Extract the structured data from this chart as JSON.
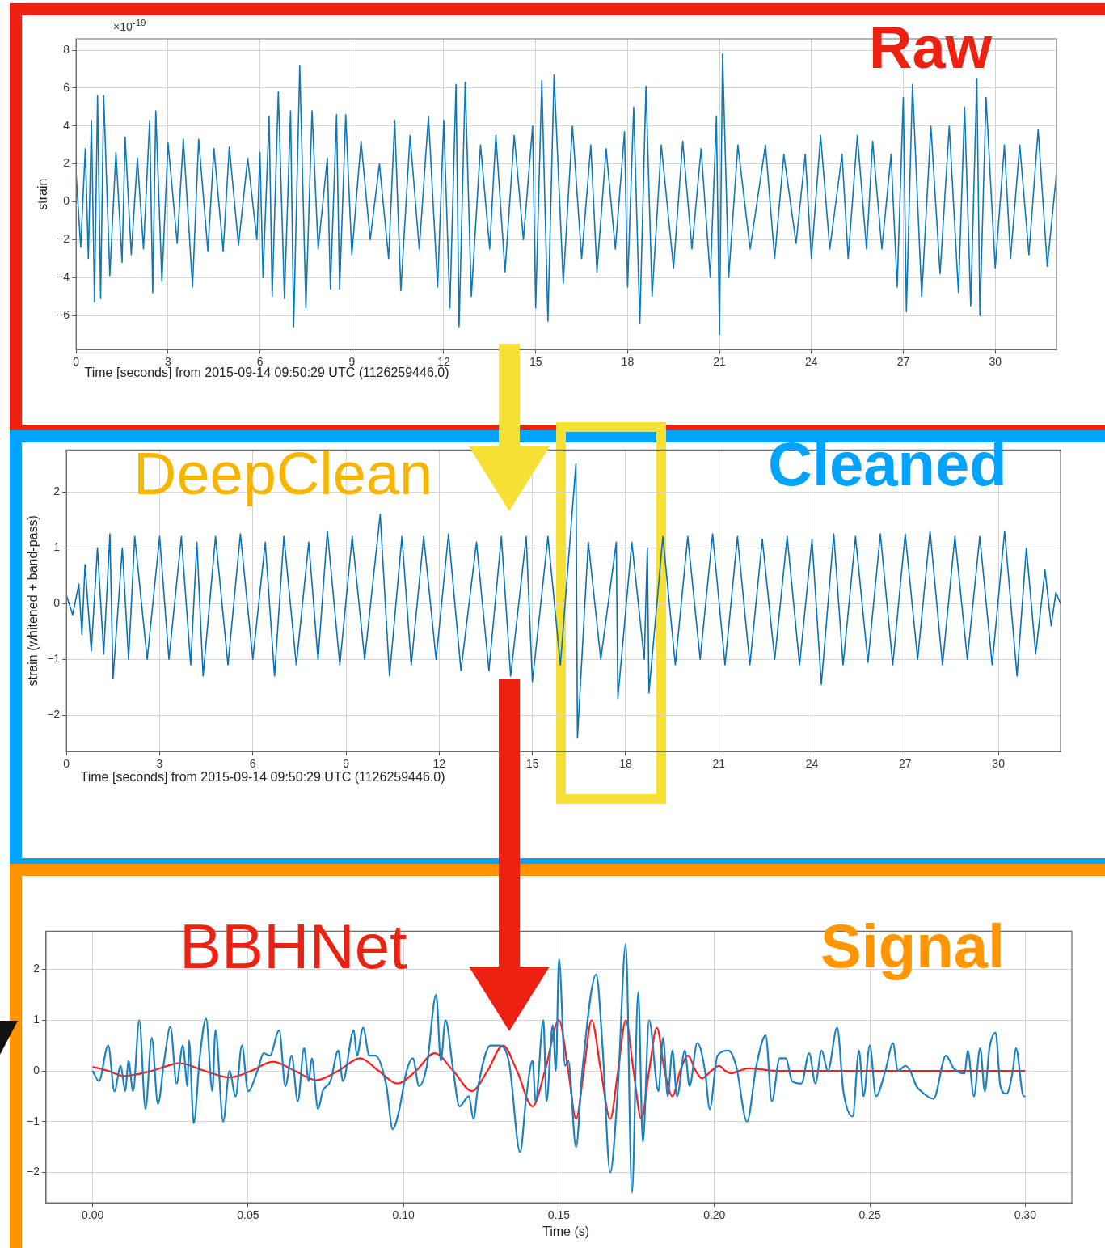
{
  "chart_data": [
    {
      "type": "line",
      "ylabel": "strain",
      "xlabel": "Time [seconds] from 2015-09-14 09:50:29 UTC (1126259446.0)",
      "annotations": [
        "Raw",
        "×10$^{-19}$"
      ],
      "xlim": [
        0,
        32
      ],
      "ylim": [
        -7.8,
        8.6
      ],
      "xticks": [
        0,
        3,
        6,
        9,
        12,
        15,
        18,
        21,
        24,
        27,
        30
      ],
      "yticks": [
        -6,
        -4,
        -2,
        0,
        2,
        4,
        6,
        8
      ],
      "grid": true,
      "series": [
        {
          "color": "#0f78b8",
          "x": [
            0,
            0.15,
            0.3,
            0.4,
            0.5,
            0.6,
            0.7,
            0.8,
            0.9,
            1.1,
            1.3,
            1.5,
            1.6,
            1.8,
            2.0,
            2.2,
            2.4,
            2.5,
            2.6,
            2.8,
            3.0,
            3.3,
            3.5,
            3.8,
            4.0,
            4.3,
            4.5,
            4.8,
            5.0,
            5.3,
            5.6,
            5.9,
            6.0,
            6.1,
            6.3,
            6.4,
            6.6,
            6.8,
            7.0,
            7.1,
            7.3,
            7.5,
            7.7,
            7.9,
            8.2,
            8.3,
            8.5,
            8.6,
            8.8,
            9.0,
            9.3,
            9.6,
            9.9,
            10.2,
            10.4,
            10.6,
            10.9,
            11.2,
            11.5,
            11.8,
            12.0,
            12.2,
            12.4,
            12.5,
            12.7,
            12.9,
            13.2,
            13.5,
            13.7,
            14.0,
            14.3,
            14.6,
            14.9,
            15.0,
            15.2,
            15.4,
            15.6,
            15.9,
            16.2,
            16.5,
            16.8,
            17.0,
            17.3,
            17.6,
            17.9,
            18.0,
            18.2,
            18.4,
            18.6,
            18.8,
            19.1,
            19.5,
            19.8,
            20.1,
            20.4,
            20.7,
            20.9,
            21.0,
            21.1,
            21.3,
            21.6,
            22.0,
            22.5,
            22.8,
            23.1,
            23.5,
            23.8,
            24.0,
            24.3,
            24.6,
            25.0,
            25.2,
            25.5,
            25.8,
            26.0,
            26.3,
            26.6,
            26.8,
            27.0,
            27.1,
            27.3,
            27.6,
            27.9,
            28.2,
            28.5,
            28.8,
            29.0,
            29.2,
            29.4,
            29.5,
            29.7,
            30.0,
            30.3,
            30.5,
            30.8,
            31.1,
            31.4,
            31.7,
            32.0
          ],
          "values": [
            1.5,
            -2.4,
            2.8,
            -3,
            4.3,
            -5.3,
            5.6,
            -5.1,
            5.6,
            -3.9,
            2.6,
            -3.2,
            3.4,
            -2.8,
            2.3,
            -2.5,
            4.3,
            -4.8,
            4.8,
            -4.2,
            3.1,
            -2.2,
            3.3,
            -4.5,
            3.3,
            -2.6,
            2.8,
            -2.6,
            2.9,
            -2.3,
            2.3,
            -2.0,
            2.6,
            -4.0,
            4.5,
            -5.0,
            5.8,
            -5.1,
            4.8,
            -6.6,
            7.2,
            -5.6,
            4.8,
            -2.5,
            2.3,
            -4.6,
            4.6,
            -4.6,
            4.6,
            -2.8,
            3.2,
            -2.0,
            2.0,
            -3.0,
            4.3,
            -4.7,
            3.5,
            -2.5,
            4.5,
            -4.5,
            4.3,
            -5.6,
            6.2,
            -6.6,
            6.3,
            -5.0,
            3.0,
            -2.5,
            3.5,
            -3.7,
            3.5,
            -2.0,
            4.0,
            -5.6,
            6.4,
            -6.3,
            6.7,
            -4.3,
            4.0,
            -3.0,
            3.0,
            -3.7,
            2.8,
            -2.5,
            3.7,
            -4.5,
            5.0,
            -6.4,
            6.1,
            -5.0,
            3.0,
            -3.5,
            3.2,
            -2.5,
            2.8,
            -4.0,
            4.5,
            -7.0,
            7.8,
            -4.0,
            3.0,
            -2.5,
            3.0,
            -3.0,
            2.5,
            -2.2,
            2.5,
            -3.0,
            3.5,
            -2.5,
            2.5,
            -3.0,
            3.5,
            -2.5,
            3.2,
            -2.5,
            2.5,
            -4.5,
            5.5,
            -5.8,
            6.2,
            -5.0,
            4.0,
            -3.8,
            4.0,
            -4.8,
            5.0,
            -5.5,
            6.5,
            -6.0,
            5.5,
            -3.5,
            3.0,
            -3.0,
            3.0,
            -2.8,
            3.8,
            -3.4,
            1.5
          ]
        }
      ]
    },
    {
      "type": "line",
      "ylabel": "strain (whitened + band-pass)",
      "xlabel": "Time [seconds] from 2015-09-14 09:50:29 UTC (1126259446.0)",
      "annotations": [
        "DeepClean",
        "Cleaned"
      ],
      "xlim": [
        0,
        32
      ],
      "ylim": [
        -2.65,
        2.75
      ],
      "xticks": [
        0,
        3,
        6,
        9,
        12,
        15,
        18,
        21,
        24,
        27,
        30
      ],
      "yticks": [
        -2,
        -1,
        0,
        1,
        2
      ],
      "grid": true,
      "series": [
        {
          "color": "#0a72b4",
          "x": [
            0,
            0.2,
            0.4,
            0.5,
            0.6,
            0.8,
            1.0,
            1.2,
            1.4,
            1.5,
            1.8,
            2.0,
            2.2,
            2.6,
            3.0,
            3.3,
            3.7,
            4.0,
            4.2,
            4.4,
            4.8,
            5.2,
            5.6,
            6.0,
            6.4,
            6.7,
            7.0,
            7.4,
            7.8,
            8.1,
            8.4,
            8.8,
            9.2,
            9.6,
            10.1,
            10.4,
            10.8,
            11.1,
            11.5,
            11.9,
            12.3,
            12.7,
            13.2,
            13.6,
            14.0,
            14.3,
            14.8,
            15.0,
            15.5,
            15.9,
            16.4,
            16.45,
            16.8,
            17.2,
            17.7,
            17.75,
            18.2,
            18.6,
            18.7,
            18.75,
            19.2,
            19.6,
            20.0,
            20.4,
            20.8,
            21.2,
            21.6,
            22.0,
            22.4,
            22.8,
            23.2,
            23.6,
            24.0,
            24.3,
            24.7,
            25.0,
            25.4,
            25.8,
            26.2,
            26.6,
            27.0,
            27.4,
            27.8,
            28.2,
            28.6,
            29.0,
            29.4,
            29.8,
            30.2,
            30.6,
            30.9,
            31.2,
            31.5,
            31.7,
            31.85,
            32.0
          ],
          "values": [
            0.15,
            -0.2,
            0.35,
            -0.55,
            0.7,
            -0.85,
            1.0,
            -0.9,
            1.25,
            -1.35,
            1.0,
            -1.0,
            1.2,
            -1.0,
            1.2,
            -1.0,
            1.2,
            -1.1,
            1.1,
            -1.3,
            1.2,
            -1.1,
            1.25,
            -1.0,
            1.1,
            -1.3,
            1.2,
            -1.1,
            1.1,
            -1.0,
            1.3,
            -1.1,
            1.2,
            -1.0,
            1.6,
            -1.3,
            1.2,
            -1.1,
            1.2,
            -1.0,
            1.25,
            -1.2,
            1.1,
            -1.2,
            1.2,
            -1.3,
            1.2,
            -1.4,
            1.2,
            -1.1,
            2.5,
            -2.4,
            1.1,
            -1.0,
            1.1,
            -1.7,
            1.1,
            -1.0,
            1.0,
            -1.6,
            1.2,
            -1.1,
            1.2,
            -1.0,
            1.25,
            -1.1,
            1.2,
            -1.1,
            1.15,
            -1.0,
            1.2,
            -1.1,
            1.15,
            -1.45,
            1.25,
            -1.1,
            1.2,
            -1.05,
            1.25,
            -1.1,
            1.25,
            -1.0,
            1.3,
            -1.1,
            1.2,
            -1.0,
            1.2,
            -1.1,
            1.3,
            -1.3,
            1.0,
            -0.9,
            0.6,
            -0.4,
            0.2,
            0.0
          ]
        }
      ]
    },
    {
      "type": "line",
      "xlabel": "Time (s)",
      "annotations": [
        "BBHNet",
        "Signal"
      ],
      "xlim": [
        -0.015,
        0.315
      ],
      "ylim": [
        -2.6,
        2.75
      ],
      "xticks": [
        {
          "value": 0,
          "label": "0.00"
        },
        {
          "value": 0.05,
          "label": "0.05"
        },
        {
          "value": 0.1,
          "label": "0.10"
        },
        {
          "value": 0.15,
          "label": "0.15"
        },
        {
          "value": 0.2,
          "label": "0.20"
        },
        {
          "value": 0.25,
          "label": "0.25"
        },
        {
          "value": 0.3,
          "label": "0.30"
        }
      ],
      "yticks": [
        -2,
        -1,
        0,
        1,
        2
      ],
      "grid": true,
      "series": [
        {
          "color": "#1a82c0",
          "x": [
            0,
            0.002,
            0.005,
            0.007,
            0.009,
            0.0105,
            0.0115,
            0.013,
            0.015,
            0.017,
            0.019,
            0.021,
            0.023,
            0.025,
            0.027,
            0.029,
            0.0305,
            0.031,
            0.0325,
            0.0345,
            0.0365,
            0.0385,
            0.0395,
            0.042,
            0.044,
            0.046,
            0.048,
            0.05,
            0.053,
            0.055,
            0.057,
            0.06,
            0.062,
            0.064,
            0.066,
            0.068,
            0.0695,
            0.0705,
            0.0725,
            0.074,
            0.0765,
            0.079,
            0.0805,
            0.084,
            0.085,
            0.087,
            0.089,
            0.091,
            0.0945,
            0.0965,
            0.0985,
            0.101,
            0.103,
            0.105,
            0.1075,
            0.1105,
            0.112,
            0.1135,
            0.116,
            0.118,
            0.121,
            0.1225,
            0.124,
            0.128,
            0.131,
            0.134,
            0.1375,
            0.1395,
            0.1415,
            0.1425,
            0.145,
            0.146,
            0.148,
            0.149,
            0.15,
            0.152,
            0.153,
            0.1555,
            0.1575,
            0.162,
            0.164,
            0.1665,
            0.169,
            0.1715,
            0.1735,
            0.1755,
            0.177,
            0.179,
            0.182,
            0.1835,
            0.185,
            0.1865,
            0.188,
            0.1905,
            0.192,
            0.1945,
            0.197,
            0.1985,
            0.201,
            0.2045,
            0.207,
            0.2105,
            0.2135,
            0.2165,
            0.2185,
            0.221,
            0.223,
            0.225,
            0.228,
            0.2305,
            0.2325,
            0.2345,
            0.2365,
            0.2395,
            0.2415,
            0.2445,
            0.2465,
            0.248,
            0.25,
            0.252,
            0.255,
            0.2575,
            0.259,
            0.2615,
            0.263,
            0.265,
            0.2665,
            0.2705,
            0.2745,
            0.277,
            0.2805,
            0.2815,
            0.2835,
            0.2855,
            0.287,
            0.2885,
            0.2905,
            0.292,
            0.294,
            0.296,
            0.297,
            0.2995,
            0.3
          ],
          "values": [
            0,
            -0.2,
            0.5,
            -0.4,
            0.1,
            -0.4,
            0.2,
            -0.4,
            1.0,
            -0.75,
            0.65,
            -0.65,
            0.2,
            0.87,
            -0.25,
            0.5,
            -0.3,
            0.6,
            -1.03,
            0.3,
            1.03,
            -0.4,
            0.8,
            -1.0,
            0.0,
            -0.5,
            0.5,
            -0.4,
            0.0,
            0.35,
            0.3,
            0.8,
            -0.3,
            0.3,
            -0.6,
            0.45,
            -0.2,
            0.25,
            -0.75,
            -0.4,
            -0.2,
            0.4,
            -0.2,
            0.8,
            0.3,
            0.85,
            0.3,
            0.3,
            -0.3,
            -1.15,
            -0.8,
            0.0,
            0.25,
            -0.3,
            0.1,
            1.5,
            0.2,
            1.0,
            0.0,
            -0.7,
            -0.5,
            -0.95,
            -0.3,
            0.5,
            0.5,
            0.15,
            -1.6,
            -0.5,
            0.2,
            -0.6,
            1.0,
            -0.6,
            0.9,
            0.0,
            2.2,
            0.1,
            0.2,
            -1.5,
            0.0,
            1.9,
            0.5,
            -2.0,
            -0.3,
            2.5,
            -2.4,
            1.55,
            -1.4,
            1.0,
            -0.4,
            0.65,
            -0.5,
            0.4,
            -0.5,
            0.4,
            -0.3,
            0.55,
            0.0,
            -0.75,
            0.3,
            0.4,
            0.1,
            -1.0,
            0.1,
            0.7,
            -0.6,
            0.25,
            0.25,
            -0.2,
            -0.25,
            0.35,
            -0.25,
            0.4,
            0.0,
            0.85,
            -0.4,
            -0.9,
            0.4,
            -0.5,
            0.5,
            -0.5,
            0.0,
            0.55,
            0.0,
            0.1,
            0.0,
            -0.3,
            -0.4,
            -0.55,
            0.3,
            0.05,
            -0.05,
            0.4,
            -0.5,
            0.45,
            -0.4,
            0.45,
            0.75,
            -0.3,
            -0.45,
            0.0,
            0.45,
            -0.5,
            -0.5
          ]
        },
        {
          "color": "#ff1c1c",
          "x": [
            0,
            0.005,
            0.01,
            0.019,
            0.028,
            0.036,
            0.044,
            0.051,
            0.058,
            0.065,
            0.072,
            0.079,
            0.086,
            0.092,
            0.098,
            0.104,
            0.11,
            0.116,
            0.122,
            0.127,
            0.132,
            0.1365,
            0.1415,
            0.1455,
            0.15,
            0.153,
            0.1555,
            0.158,
            0.1605,
            0.1635,
            0.1665,
            0.169,
            0.1715,
            0.174,
            0.1765,
            0.179,
            0.1815,
            0.184,
            0.1865,
            0.189,
            0.1915,
            0.194,
            0.196,
            0.199,
            0.2015,
            0.2035,
            0.2055,
            0.208,
            0.211,
            0.22,
            0.3
          ],
          "values": [
            0.08,
            0,
            -0.1,
            0,
            0.15,
            0,
            -0.13,
            0,
            0.18,
            0,
            -0.18,
            0,
            0.25,
            0,
            -0.25,
            0,
            0.35,
            0,
            -0.4,
            0,
            0.5,
            0,
            -0.7,
            0,
            1.0,
            0,
            -0.95,
            0,
            1.0,
            0,
            -0.95,
            0,
            1.0,
            0,
            -0.95,
            0,
            0.85,
            0,
            -0.5,
            0,
            0.3,
            0,
            -0.15,
            0,
            0.1,
            0,
            -0.05,
            0,
            0.05,
            0,
            0
          ]
        }
      ]
    }
  ]
}
